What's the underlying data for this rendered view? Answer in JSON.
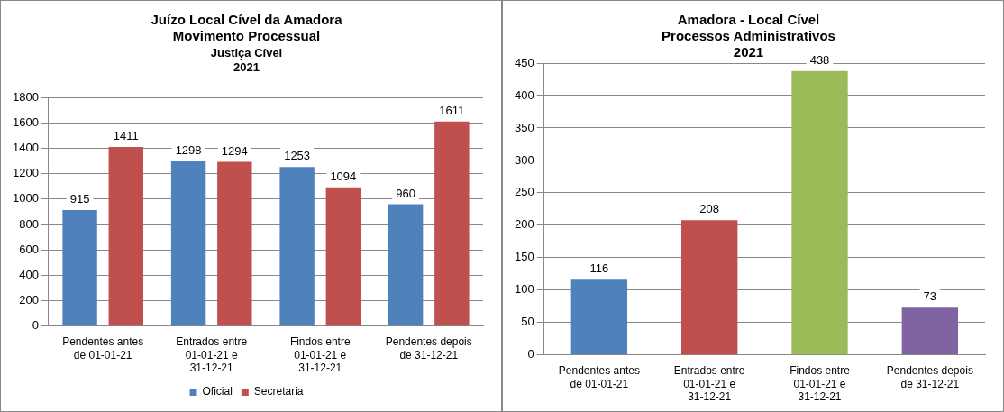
{
  "chart_data": [
    {
      "type": "bar",
      "title": "Juízo Local Cível da Amadora\nMovimento Processual",
      "subtitle": "Justiça Cível\n2021",
      "categories": [
        "Pendentes antes de 01-01-21",
        "Entrados entre 01-01-21 e 31-12-21",
        "Findos entre 01-01-21 e 31-12-21",
        "Pendentes depois de 31-12-21"
      ],
      "series": [
        {
          "name": "Oficial",
          "color": "#4f81bd",
          "values": [
            915,
            1298,
            1253,
            960
          ]
        },
        {
          "name": "Secretaria",
          "color": "#c0504d",
          "values": [
            1411,
            1294,
            1094,
            1611
          ]
        }
      ],
      "ylim": [
        0,
        1800
      ],
      "yticks": [
        0,
        200,
        400,
        600,
        800,
        1000,
        1200,
        1400,
        1600,
        1800
      ],
      "grid": "y",
      "legend": "bottom",
      "data_labels": true
    },
    {
      "type": "bar",
      "title": "Amadora - Local Cível\nProcessos Administrativos\n2021",
      "categories": [
        "Pendentes antes de 01-01-21",
        "Entrados entre 01-01-21 e 31-12-21",
        "Findos entre 01-01-21 e 31-12-21",
        "Pendentes depois de 31-12-21"
      ],
      "values": [
        116,
        208,
        438,
        73
      ],
      "colors": [
        "#4f81bd",
        "#c0504d",
        "#9bbb59",
        "#8064a2"
      ],
      "ylim": [
        0,
        450
      ],
      "yticks": [
        0,
        50,
        100,
        150,
        200,
        250,
        300,
        350,
        400,
        450
      ],
      "grid": "y",
      "data_labels": true
    }
  ]
}
